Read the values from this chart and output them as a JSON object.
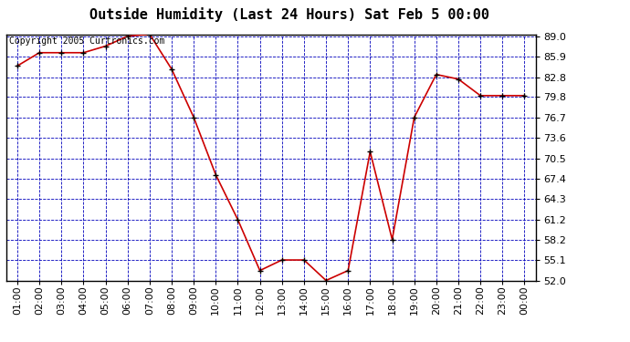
{
  "title": "Outside Humidity (Last 24 Hours) Sat Feb 5 00:00",
  "copyright": "Copyright 2005 Curtronics.com",
  "x_labels": [
    "01:00",
    "02:00",
    "03:00",
    "04:00",
    "05:00",
    "06:00",
    "07:00",
    "08:00",
    "09:00",
    "10:00",
    "11:00",
    "12:00",
    "13:00",
    "14:00",
    "15:00",
    "16:00",
    "17:00",
    "18:00",
    "19:00",
    "20:00",
    "21:00",
    "22:00",
    "23:00",
    "00:00"
  ],
  "x_values": [
    1,
    2,
    3,
    4,
    5,
    6,
    7,
    8,
    9,
    10,
    11,
    12,
    13,
    14,
    15,
    16,
    17,
    18,
    19,
    20,
    21,
    22,
    23,
    24
  ],
  "y_values": [
    84.5,
    86.5,
    86.5,
    86.5,
    87.5,
    89.0,
    89.3,
    84.0,
    76.7,
    68.0,
    61.2,
    53.5,
    55.1,
    55.1,
    52.0,
    53.5,
    71.5,
    58.2,
    76.7,
    83.2,
    82.5,
    80.0,
    80.0,
    80.0
  ],
  "ylim_min": 52.0,
  "ylim_max": 89.3,
  "yticks": [
    52.0,
    55.1,
    58.2,
    61.2,
    64.3,
    67.4,
    70.5,
    73.6,
    76.7,
    79.8,
    82.8,
    85.9,
    89.0
  ],
  "line_color": "#cc0000",
  "marker_color": "#000000",
  "fig_bg_color": "#ffffff",
  "plot_bg_color": "#ffffff",
  "grid_color": "#0000bb",
  "border_color": "#000000",
  "title_fontsize": 11,
  "copyright_fontsize": 7,
  "tick_fontsize": 8
}
